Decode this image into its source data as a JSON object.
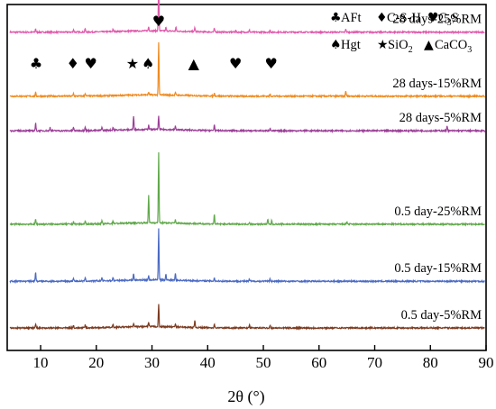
{
  "chart_data": {
    "type": "line",
    "title": "",
    "xlabel": "2θ (°)",
    "ylabel": "",
    "xlim": [
      4,
      90
    ],
    "x_ticks": [
      10,
      20,
      30,
      40,
      50,
      60,
      70,
      80,
      90
    ],
    "grid": false,
    "series": [
      {
        "name": "28 days-25%RM",
        "color": "#e05aab",
        "baseline": 0.92,
        "peaks": [
          [
            9.1,
            0.01
          ],
          [
            15.9,
            0.008
          ],
          [
            18.0,
            0.01
          ],
          [
            23.0,
            0.006
          ],
          [
            29.4,
            0.012
          ],
          [
            31.2,
            0.155
          ],
          [
            32.5,
            0.01
          ],
          [
            34.3,
            0.012
          ],
          [
            37.7,
            0.012
          ],
          [
            41.2,
            0.01
          ],
          [
            45.0,
            0.006
          ],
          [
            47.5,
            0.006
          ],
          [
            51.2,
            0.006
          ],
          [
            64.8,
            0.01
          ]
        ]
      },
      {
        "name": "28 days-15%RM",
        "color": "#f08a1e",
        "baseline": 0.735,
        "peaks": [
          [
            9.1,
            0.01
          ],
          [
            15.9,
            0.008
          ],
          [
            18.0,
            0.008
          ],
          [
            29.4,
            0.008
          ],
          [
            31.2,
            0.15
          ],
          [
            34.2,
            0.008
          ],
          [
            41.2,
            0.008
          ],
          [
            51.2,
            0.006
          ],
          [
            64.8,
            0.016
          ]
        ]
      },
      {
        "name": "28 days-5%RM",
        "color": "#9c3f98",
        "baseline": 0.635,
        "peaks": [
          [
            9.1,
            0.022
          ],
          [
            11.7,
            0.01
          ],
          [
            15.9,
            0.01
          ],
          [
            18.0,
            0.012
          ],
          [
            21.0,
            0.01
          ],
          [
            23.0,
            0.008
          ],
          [
            26.7,
            0.04
          ],
          [
            29.4,
            0.012
          ],
          [
            31.2,
            0.04
          ],
          [
            34.2,
            0.01
          ],
          [
            41.2,
            0.018
          ],
          [
            51.2,
            0.008
          ],
          [
            83.0,
            0.016
          ]
        ]
      },
      {
        "name": "0.5 day-25%RM",
        "color": "#5fa84a",
        "baseline": 0.365,
        "peaks": [
          [
            9.1,
            0.014
          ],
          [
            15.9,
            0.008
          ],
          [
            18.0,
            0.008
          ],
          [
            21.0,
            0.008
          ],
          [
            23.0,
            0.008
          ],
          [
            29.4,
            0.08
          ],
          [
            31.2,
            0.205
          ],
          [
            34.2,
            0.01
          ],
          [
            41.2,
            0.028
          ],
          [
            47.5,
            0.006
          ],
          [
            50.8,
            0.014
          ],
          [
            51.5,
            0.01
          ],
          [
            65.0,
            0.008
          ]
        ]
      },
      {
        "name": "0.5 day-15%RM",
        "color": "#4a6ac4",
        "baseline": 0.2,
        "peaks": [
          [
            9.1,
            0.025
          ],
          [
            15.9,
            0.01
          ],
          [
            18.0,
            0.01
          ],
          [
            21.0,
            0.01
          ],
          [
            23.0,
            0.01
          ],
          [
            26.7,
            0.02
          ],
          [
            29.4,
            0.012
          ],
          [
            31.2,
            0.15
          ],
          [
            32.5,
            0.016
          ],
          [
            34.2,
            0.02
          ],
          [
            41.2,
            0.01
          ],
          [
            47.5,
            0.006
          ],
          [
            51.2,
            0.008
          ]
        ]
      },
      {
        "name": "0.5 day-5%RM",
        "color": "#7b3a1f",
        "baseline": 0.065,
        "peaks": [
          [
            9.1,
            0.012
          ],
          [
            15.9,
            0.008
          ],
          [
            18.0,
            0.008
          ],
          [
            23.0,
            0.008
          ],
          [
            26.7,
            0.01
          ],
          [
            29.4,
            0.012
          ],
          [
            31.2,
            0.065
          ],
          [
            34.2,
            0.008
          ],
          [
            37.7,
            0.02
          ],
          [
            41.2,
            0.012
          ],
          [
            47.5,
            0.01
          ],
          [
            51.2,
            0.008
          ]
        ]
      }
    ],
    "phase_markers": [
      {
        "symbol": "♣",
        "x": 9.2
      },
      {
        "symbol": "♦",
        "x": 15.8
      },
      {
        "symbol": "♥",
        "x": 19.0
      },
      {
        "symbol": "★",
        "x": 26.5
      },
      {
        "symbol": "♠",
        "x": 29.3
      },
      {
        "symbol": "♥",
        "x": 31.2
      },
      {
        "symbol": "▲",
        "x": 37.5
      },
      {
        "symbol": "♥",
        "x": 45.0
      },
      {
        "symbol": "♥",
        "x": 51.4
      }
    ],
    "legend": {
      "placement": "top-right",
      "rows": [
        [
          {
            "symbol": "♣",
            "text": "AFt"
          },
          {
            "symbol": "♦",
            "text": "C-S-H"
          },
          {
            "symbol": "♥",
            "text": "C",
            "sub": "3",
            "tail": "S"
          }
        ],
        [
          {
            "symbol": "♠",
            "text": "Hgt"
          },
          {
            "symbol": "★",
            "text": "SiO",
            "sub": "2",
            "tail": ""
          },
          {
            "symbol": "▲",
            "text": "CaCO",
            "sub": "3",
            "tail": ""
          }
        ]
      ]
    }
  }
}
